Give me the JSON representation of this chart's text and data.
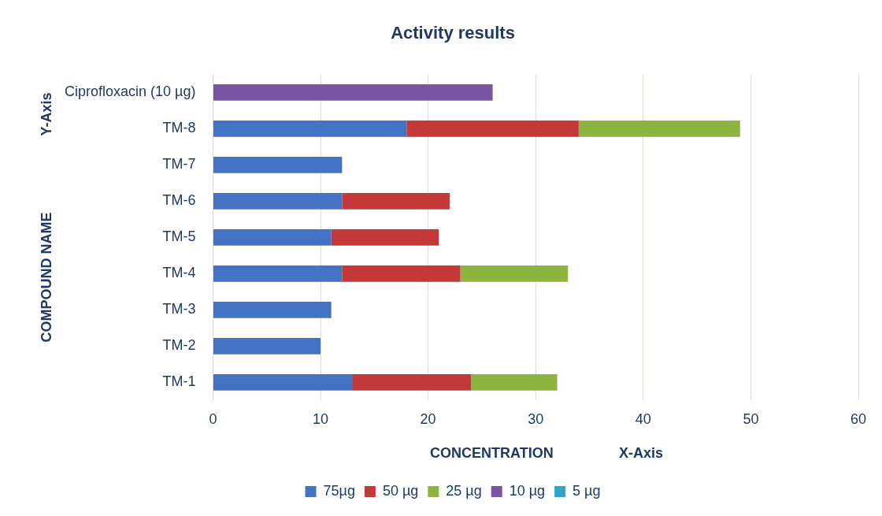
{
  "chart_data": {
    "type": "bar",
    "orientation": "horizontal",
    "stacked": true,
    "title": "Activity results",
    "xlabel": "CONCENTRATION",
    "ylabel": "COMPOUND NAME",
    "annotations": [
      "X-Axis",
      "Y-Axis"
    ],
    "categories": [
      "Ciprofloxacin (10 µg)",
      "TM-8",
      "TM-7",
      "TM-6",
      "TM-5",
      "TM-4",
      "TM-3",
      "TM-2",
      "TM-1"
    ],
    "series": [
      {
        "name": "75µg",
        "color": "#4472c4",
        "values": [
          null,
          18,
          12,
          12,
          11,
          12,
          11,
          10,
          13
        ]
      },
      {
        "name": "50 µg",
        "color": "#c5383a",
        "values": [
          null,
          16,
          null,
          10,
          10,
          11,
          null,
          null,
          11
        ]
      },
      {
        "name": "25 µg",
        "color": "#8cb43f",
        "values": [
          null,
          15,
          null,
          null,
          null,
          10,
          null,
          null,
          8
        ]
      },
      {
        "name": "10 µg",
        "color": "#7b53a3",
        "values": [
          26,
          null,
          null,
          null,
          null,
          null,
          null,
          null,
          null
        ]
      },
      {
        "name": "5 µg",
        "color": "#2fa6c9",
        "values": [
          null,
          null,
          null,
          null,
          null,
          null,
          null,
          null,
          null
        ]
      }
    ],
    "xlim": [
      0,
      60
    ],
    "xticks": [
      0,
      10,
      20,
      30,
      40,
      50,
      60
    ],
    "grid": "x",
    "legend": "bottom"
  }
}
